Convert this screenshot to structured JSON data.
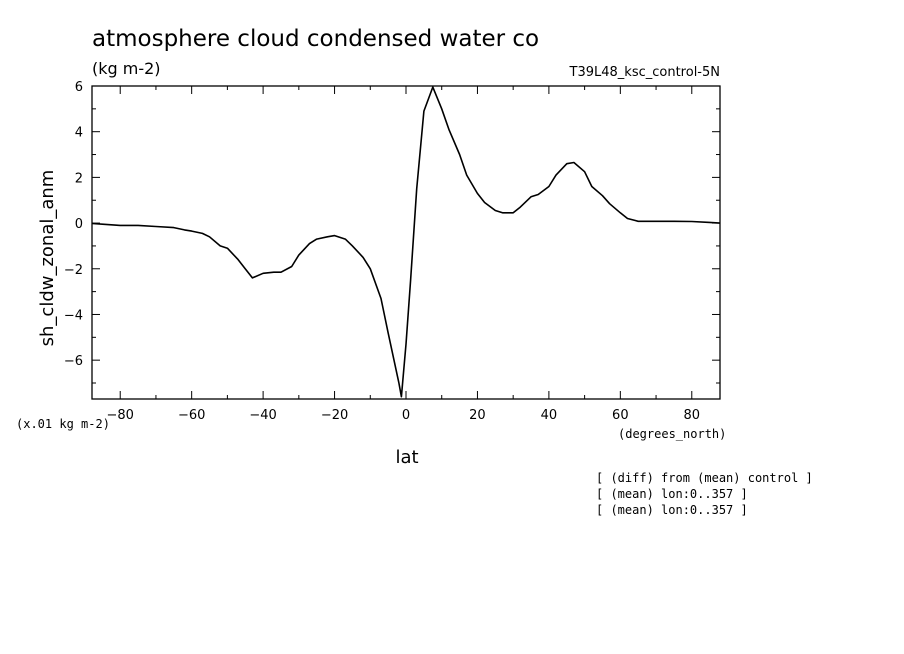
{
  "chart_data": {
    "type": "line",
    "title": "atmosphere cloud condensed water co",
    "subtitle": "(kg m-2)",
    "experiment": "T39L48_ksc_control-5N",
    "xlabel": "lat",
    "ylabel": "sh_cldw_zonal_anm",
    "x_units": "(degrees_north)",
    "y_scale_note": "(x.01 kg m-2)",
    "xlim": [
      -87.9,
      87.9
    ],
    "ylim": [
      -7.7,
      6.0
    ],
    "x_ticks": [
      -80,
      -60,
      -40,
      -20,
      0,
      20,
      40,
      60,
      80
    ],
    "y_ticks": [
      -6,
      -4,
      -2,
      0,
      2,
      4,
      6
    ],
    "notes": [
      "[ (diff) from (mean) control ]",
      "[ (mean) lon:0..357 ]",
      "[ (mean) lon:0..357 ]"
    ],
    "series": [
      {
        "color": "#000000",
        "x": [
          -87.9,
          -85,
          -80,
          -75,
          -70,
          -65,
          -62,
          -60,
          -57,
          -55,
          -52,
          -50,
          -47,
          -45,
          -43,
          -40,
          -37,
          -35,
          -32,
          -30,
          -27,
          -25,
          -22,
          -20,
          -17,
          -15,
          -12,
          -10,
          -7,
          -5,
          -2,
          -1.3,
          0,
          1.3,
          3,
          5,
          7.5,
          10,
          12,
          15,
          17,
          20,
          22,
          25,
          27,
          30,
          32,
          35,
          37,
          40,
          42,
          45,
          47,
          50,
          52,
          55,
          57,
          60,
          62,
          65,
          70,
          75,
          80,
          85,
          87.9
        ],
        "y": [
          -0.02,
          -0.05,
          -0.1,
          -0.1,
          -0.15,
          -0.2,
          -0.3,
          -0.35,
          -0.45,
          -0.6,
          -1.0,
          -1.1,
          -1.6,
          -2.0,
          -2.4,
          -2.2,
          -2.15,
          -2.15,
          -1.9,
          -1.4,
          -0.9,
          -0.7,
          -0.6,
          -0.55,
          -0.7,
          -1.0,
          -1.5,
          -2.0,
          -3.3,
          -4.8,
          -7.0,
          -7.6,
          -5.3,
          -2.5,
          1.5,
          4.9,
          5.95,
          5.0,
          4.1,
          3.0,
          2.1,
          1.3,
          0.9,
          0.55,
          0.45,
          0.45,
          0.7,
          1.15,
          1.25,
          1.6,
          2.1,
          2.6,
          2.65,
          2.25,
          1.6,
          1.2,
          0.85,
          0.45,
          0.2,
          0.08,
          0.08,
          0.08,
          0.07,
          0.03,
          0.0
        ]
      }
    ]
  }
}
